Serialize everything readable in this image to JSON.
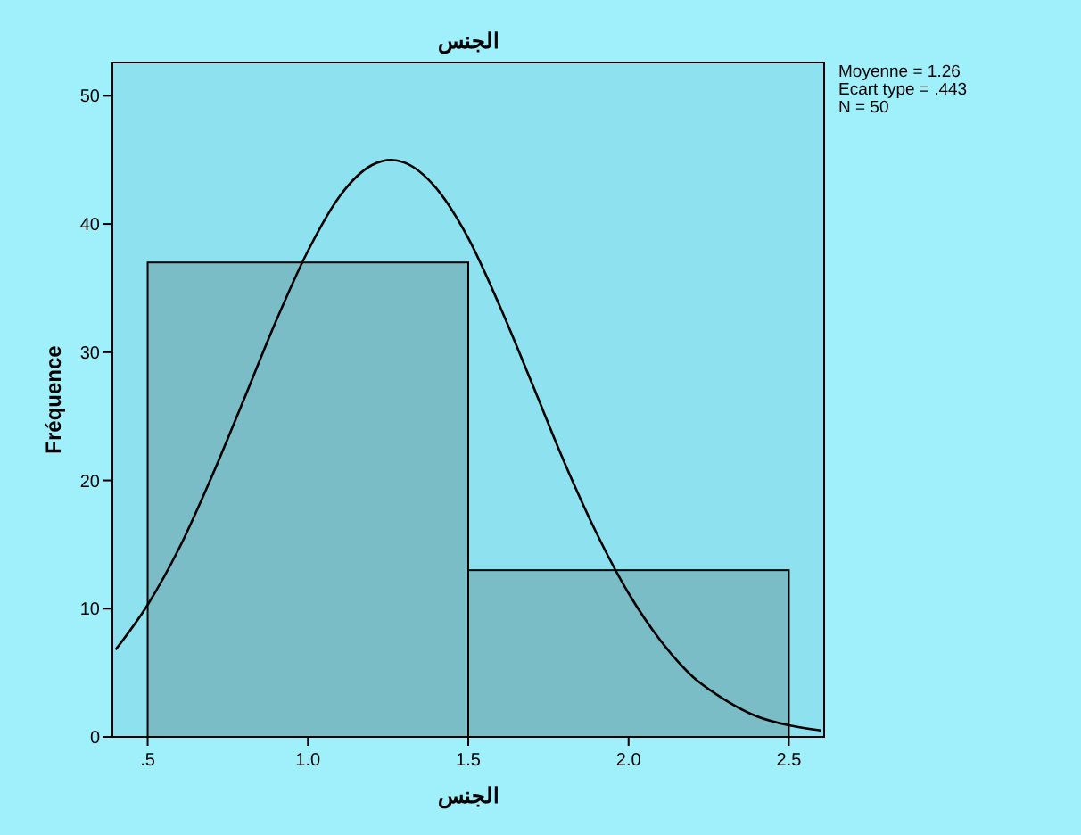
{
  "chart_data": {
    "type": "histogram",
    "title": "الجنس",
    "xlabel": "الجنس",
    "ylabel": "Fréquence",
    "bins": [
      0.5,
      1.5,
      2.5
    ],
    "values": [
      37,
      13
    ],
    "color": "#7abdc6",
    "series": [
      {
        "type": "line",
        "color": "#000000",
        "x": [
          0.4,
          0.5,
          0.6,
          0.7,
          0.8,
          0.9,
          1.0,
          1.1,
          1.2,
          1.26,
          1.3,
          1.4,
          1.5,
          1.6,
          1.7,
          1.8,
          1.9,
          2.0,
          2.1,
          2.2,
          2.3,
          2.4,
          2.5,
          2.6
        ],
        "values": [
          6.8,
          10.3,
          14.8,
          20.3,
          26.3,
          32.4,
          37.9,
          42.2,
          44.6,
          45.0,
          44.8,
          42.8,
          38.9,
          33.5,
          27.5,
          21.4,
          15.9,
          11.2,
          7.5,
          4.7,
          2.9,
          1.6,
          0.9,
          0.5
        ]
      }
    ],
    "xlim": [
      0.39,
      2.61
    ],
    "ylim": [
      0,
      52.6
    ],
    "xticks": [
      {
        "value": 0.5,
        "label": ".5"
      },
      {
        "value": 1,
        "label": "1.0"
      },
      {
        "value": 1.5,
        "label": "1.5"
      },
      {
        "value": 2,
        "label": "2.0"
      },
      {
        "value": 2.5,
        "label": "2.5"
      }
    ],
    "yticks": [
      0,
      10,
      20,
      30,
      40,
      50
    ],
    "annotations": [
      "Moyenne = 1.26",
      "Ecart type = .443",
      "N = 50"
    ]
  }
}
